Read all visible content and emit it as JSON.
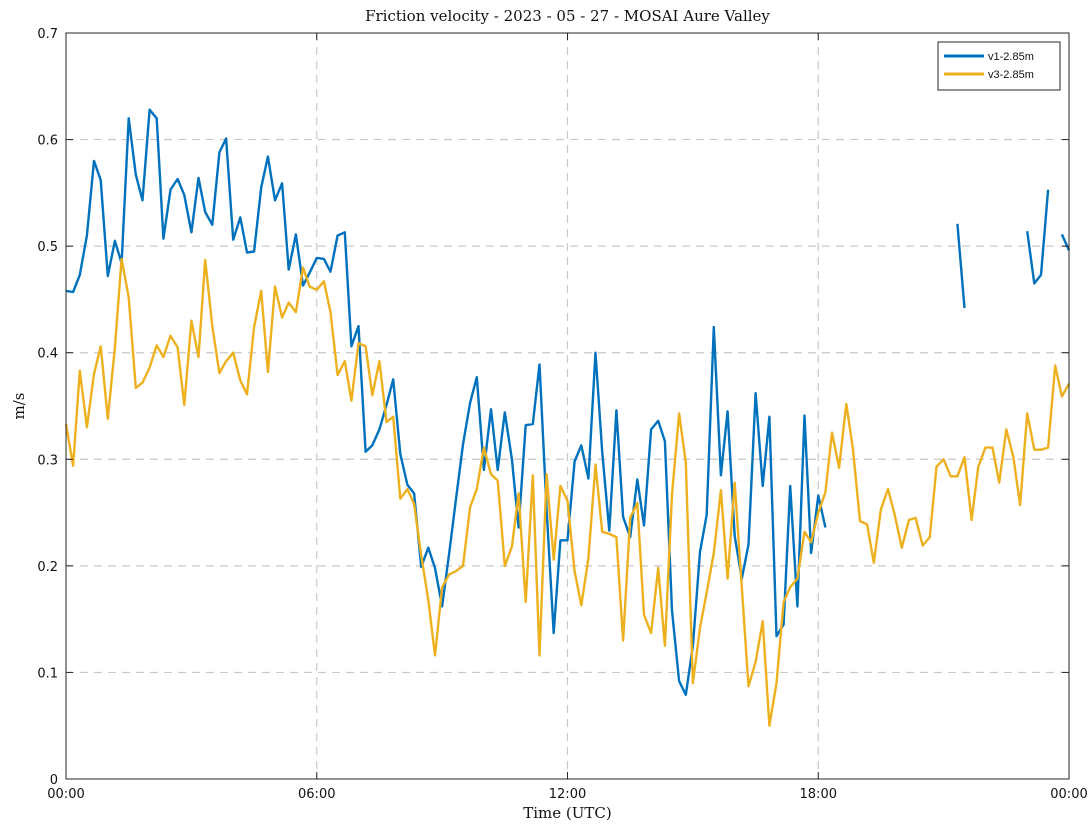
{
  "chart_data": {
    "type": "line",
    "title": "Friction velocity - 2023 - 05 - 27 - MOSAI Aure Valley",
    "xlabel": "Time (UTC)",
    "ylabel": "m/s",
    "xlim": [
      0,
      24
    ],
    "ylim": [
      0,
      0.7
    ],
    "x_ticks": [
      0,
      6,
      12,
      18,
      24
    ],
    "x_tick_labels": [
      "00:00",
      "06:00",
      "12:00",
      "18:00",
      "00:00"
    ],
    "y_ticks": [
      0,
      0.1,
      0.2,
      0.3,
      0.4,
      0.5,
      0.6,
      0.7
    ],
    "y_tick_labels": [
      "0",
      "0.1",
      "0.2",
      "0.3",
      "0.4",
      "0.5",
      "0.6",
      "0.7"
    ],
    "x_unit": "hours (UTC) since 00:00",
    "grid": true,
    "legend_position": "top-right",
    "series": [
      {
        "name": "v1-2.85m",
        "color": "#0072BD",
        "points": [
          [
            0.0,
            0.458
          ],
          [
            0.17,
            0.457
          ],
          [
            0.33,
            0.473
          ],
          [
            0.5,
            0.51
          ],
          [
            0.67,
            0.58
          ],
          [
            0.83,
            0.562
          ],
          [
            1.0,
            0.472
          ],
          [
            1.17,
            0.505
          ],
          [
            1.33,
            0.484
          ],
          [
            1.5,
            0.62
          ],
          [
            1.67,
            0.567
          ],
          [
            1.83,
            0.543
          ],
          [
            2.0,
            0.628
          ],
          [
            2.17,
            0.62
          ],
          [
            2.33,
            0.507
          ],
          [
            2.5,
            0.553
          ],
          [
            2.67,
            0.563
          ],
          [
            2.83,
            0.548
          ],
          [
            3.0,
            0.513
          ],
          [
            3.17,
            0.564
          ],
          [
            3.33,
            0.532
          ],
          [
            3.5,
            0.52
          ],
          [
            3.67,
            0.588
          ],
          [
            3.83,
            0.601
          ],
          [
            4.0,
            0.506
          ],
          [
            4.17,
            0.527
          ],
          [
            4.33,
            0.494
          ],
          [
            4.5,
            0.495
          ],
          [
            4.67,
            0.555
          ],
          [
            4.83,
            0.584
          ],
          [
            5.0,
            0.543
          ],
          [
            5.17,
            0.559
          ],
          [
            5.33,
            0.478
          ],
          [
            5.5,
            0.511
          ],
          [
            5.67,
            0.463
          ],
          [
            5.83,
            0.475
          ],
          [
            6.0,
            0.489
          ],
          [
            6.17,
            0.488
          ],
          [
            6.33,
            0.476
          ],
          [
            6.5,
            0.51
          ],
          [
            6.67,
            0.513
          ],
          [
            6.83,
            0.406
          ],
          [
            7.0,
            0.425
          ],
          [
            7.17,
            0.307
          ],
          [
            7.33,
            0.313
          ],
          [
            7.5,
            0.328
          ],
          [
            7.67,
            0.351
          ],
          [
            7.83,
            0.375
          ],
          [
            8.0,
            0.305
          ],
          [
            8.17,
            0.276
          ],
          [
            8.33,
            0.268
          ],
          [
            8.5,
            0.199
          ],
          [
            8.67,
            0.217
          ],
          [
            8.83,
            0.198
          ],
          [
            9.0,
            0.162
          ],
          [
            9.17,
            0.212
          ],
          [
            9.33,
            0.262
          ],
          [
            9.5,
            0.314
          ],
          [
            9.67,
            0.353
          ],
          [
            9.83,
            0.377
          ],
          [
            10.0,
            0.29
          ],
          [
            10.17,
            0.347
          ],
          [
            10.33,
            0.29
          ],
          [
            10.5,
            0.344
          ],
          [
            10.67,
            0.3
          ],
          [
            10.83,
            0.236
          ],
          [
            11.0,
            0.332
          ],
          [
            11.17,
            0.333
          ],
          [
            11.33,
            0.389
          ],
          [
            11.5,
            0.253
          ],
          [
            11.67,
            0.137
          ],
          [
            11.83,
            0.224
          ],
          [
            12.0,
            0.224
          ],
          [
            12.17,
            0.298
          ],
          [
            12.33,
            0.313
          ],
          [
            12.5,
            0.282
          ],
          [
            12.67,
            0.4
          ],
          [
            12.83,
            0.307
          ],
          [
            13.0,
            0.233
          ],
          [
            13.17,
            0.346
          ],
          [
            13.33,
            0.246
          ],
          [
            13.5,
            0.227
          ],
          [
            13.67,
            0.281
          ],
          [
            13.83,
            0.238
          ],
          [
            14.0,
            0.328
          ],
          [
            14.17,
            0.336
          ],
          [
            14.33,
            0.317
          ],
          [
            14.5,
            0.158
          ],
          [
            14.67,
            0.092
          ],
          [
            14.83,
            0.079
          ],
          [
            15.0,
            0.125
          ],
          [
            15.17,
            0.213
          ],
          [
            15.33,
            0.248
          ],
          [
            15.5,
            0.424
          ],
          [
            15.67,
            0.285
          ],
          [
            15.83,
            0.345
          ],
          [
            16.0,
            0.228
          ],
          [
            16.17,
            0.188
          ],
          [
            16.33,
            0.22
          ],
          [
            16.5,
            0.362
          ],
          [
            16.67,
            0.275
          ],
          [
            16.83,
            0.34
          ],
          [
            17.0,
            0.134
          ],
          [
            17.17,
            0.145
          ],
          [
            17.33,
            0.275
          ],
          [
            17.5,
            0.162
          ],
          [
            17.67,
            0.341
          ],
          [
            17.83,
            0.212
          ],
          [
            18.0,
            0.266
          ],
          [
            18.17,
            0.236
          ],
          null,
          [
            21.33,
            0.521
          ],
          [
            21.5,
            0.442
          ],
          null,
          [
            23.0,
            0.514
          ],
          [
            23.17,
            0.465
          ],
          [
            23.33,
            0.473
          ],
          [
            23.5,
            0.553
          ],
          null,
          [
            23.83,
            0.511
          ],
          [
            24.0,
            0.496
          ]
        ]
      },
      {
        "name": "v3-2.85m",
        "color": "#EDB120",
        "points": [
          [
            0.0,
            0.333
          ],
          [
            0.17,
            0.294
          ],
          [
            0.33,
            0.383
          ],
          [
            0.5,
            0.33
          ],
          [
            0.67,
            0.38
          ],
          [
            0.83,
            0.406
          ],
          [
            1.0,
            0.338
          ],
          [
            1.17,
            0.405
          ],
          [
            1.33,
            0.488
          ],
          [
            1.5,
            0.452
          ],
          [
            1.67,
            0.367
          ],
          [
            1.83,
            0.372
          ],
          [
            2.0,
            0.386
          ],
          [
            2.17,
            0.407
          ],
          [
            2.33,
            0.396
          ],
          [
            2.5,
            0.416
          ],
          [
            2.67,
            0.405
          ],
          [
            2.83,
            0.351
          ],
          [
            3.0,
            0.43
          ],
          [
            3.17,
            0.396
          ],
          [
            3.33,
            0.487
          ],
          [
            3.5,
            0.425
          ],
          [
            3.67,
            0.381
          ],
          [
            3.83,
            0.392
          ],
          [
            4.0,
            0.4
          ],
          [
            4.17,
            0.374
          ],
          [
            4.33,
            0.361
          ],
          [
            4.5,
            0.424
          ],
          [
            4.67,
            0.458
          ],
          [
            4.83,
            0.382
          ],
          [
            5.0,
            0.462
          ],
          [
            5.17,
            0.433
          ],
          [
            5.33,
            0.447
          ],
          [
            5.5,
            0.438
          ],
          [
            5.67,
            0.48
          ],
          [
            5.83,
            0.462
          ],
          [
            6.0,
            0.459
          ],
          [
            6.17,
            0.467
          ],
          [
            6.33,
            0.438
          ],
          [
            6.5,
            0.379
          ],
          [
            6.67,
            0.392
          ],
          [
            6.83,
            0.355
          ],
          [
            7.0,
            0.409
          ],
          [
            7.17,
            0.406
          ],
          [
            7.33,
            0.36
          ],
          [
            7.5,
            0.392
          ],
          [
            7.67,
            0.335
          ],
          [
            7.83,
            0.34
          ],
          [
            8.0,
            0.263
          ],
          [
            8.17,
            0.272
          ],
          [
            8.33,
            0.258
          ],
          [
            8.5,
            0.21
          ],
          [
            8.67,
            0.168
          ],
          [
            8.83,
            0.116
          ],
          [
            9.0,
            0.18
          ],
          [
            9.17,
            0.192
          ],
          [
            9.33,
            0.195
          ],
          [
            9.5,
            0.2
          ],
          [
            9.67,
            0.255
          ],
          [
            9.83,
            0.272
          ],
          [
            10.0,
            0.311
          ],
          [
            10.17,
            0.286
          ],
          [
            10.33,
            0.28
          ],
          [
            10.5,
            0.2
          ],
          [
            10.67,
            0.218
          ],
          [
            10.83,
            0.268
          ],
          [
            11.0,
            0.166
          ],
          [
            11.17,
            0.285
          ],
          [
            11.33,
            0.116
          ],
          [
            11.5,
            0.286
          ],
          [
            11.67,
            0.206
          ],
          [
            11.83,
            0.275
          ],
          [
            12.0,
            0.261
          ],
          [
            12.17,
            0.195
          ],
          [
            12.33,
            0.163
          ],
          [
            12.5,
            0.207
          ],
          [
            12.67,
            0.295
          ],
          [
            12.83,
            0.232
          ],
          [
            13.0,
            0.23
          ],
          [
            13.17,
            0.227
          ],
          [
            13.33,
            0.13
          ],
          [
            13.5,
            0.245
          ],
          [
            13.67,
            0.259
          ],
          [
            13.83,
            0.154
          ],
          [
            14.0,
            0.137
          ],
          [
            14.17,
            0.198
          ],
          [
            14.33,
            0.125
          ],
          [
            14.5,
            0.267
          ],
          [
            14.67,
            0.343
          ],
          [
            14.83,
            0.297
          ],
          [
            15.0,
            0.09
          ],
          [
            15.17,
            0.142
          ],
          [
            15.33,
            0.175
          ],
          [
            15.5,
            0.212
          ],
          [
            15.67,
            0.271
          ],
          [
            15.83,
            0.188
          ],
          [
            16.0,
            0.278
          ],
          [
            16.17,
            0.18
          ],
          [
            16.33,
            0.087
          ],
          [
            16.5,
            0.11
          ],
          [
            16.67,
            0.148
          ],
          [
            16.83,
            0.05
          ],
          [
            17.0,
            0.09
          ],
          [
            17.17,
            0.166
          ],
          [
            17.33,
            0.18
          ],
          [
            17.5,
            0.188
          ],
          [
            17.67,
            0.232
          ],
          [
            17.83,
            0.222
          ],
          [
            18.0,
            0.25
          ],
          [
            18.17,
            0.269
          ],
          [
            18.33,
            0.325
          ],
          [
            18.5,
            0.292
          ],
          [
            18.67,
            0.352
          ],
          [
            18.83,
            0.31
          ],
          [
            19.0,
            0.242
          ],
          [
            19.17,
            0.239
          ],
          [
            19.33,
            0.203
          ],
          [
            19.5,
            0.253
          ],
          [
            19.67,
            0.272
          ],
          [
            19.83,
            0.248
          ],
          [
            20.0,
            0.217
          ],
          [
            20.17,
            0.243
          ],
          [
            20.33,
            0.245
          ],
          [
            20.5,
            0.219
          ],
          [
            20.67,
            0.227
          ],
          [
            20.83,
            0.293
          ],
          [
            21.0,
            0.3
          ],
          [
            21.17,
            0.284
          ],
          [
            21.33,
            0.284
          ],
          [
            21.5,
            0.302
          ],
          [
            21.67,
            0.243
          ],
          [
            21.83,
            0.293
          ],
          [
            22.0,
            0.311
          ],
          [
            22.17,
            0.311
          ],
          [
            22.33,
            0.278
          ],
          [
            22.5,
            0.328
          ],
          [
            22.67,
            0.302
          ],
          [
            22.83,
            0.257
          ],
          [
            23.0,
            0.343
          ],
          [
            23.17,
            0.309
          ],
          [
            23.33,
            0.309
          ],
          [
            23.5,
            0.311
          ],
          [
            23.67,
            0.388
          ],
          [
            23.83,
            0.359
          ],
          [
            24.0,
            0.371
          ]
        ]
      }
    ]
  }
}
